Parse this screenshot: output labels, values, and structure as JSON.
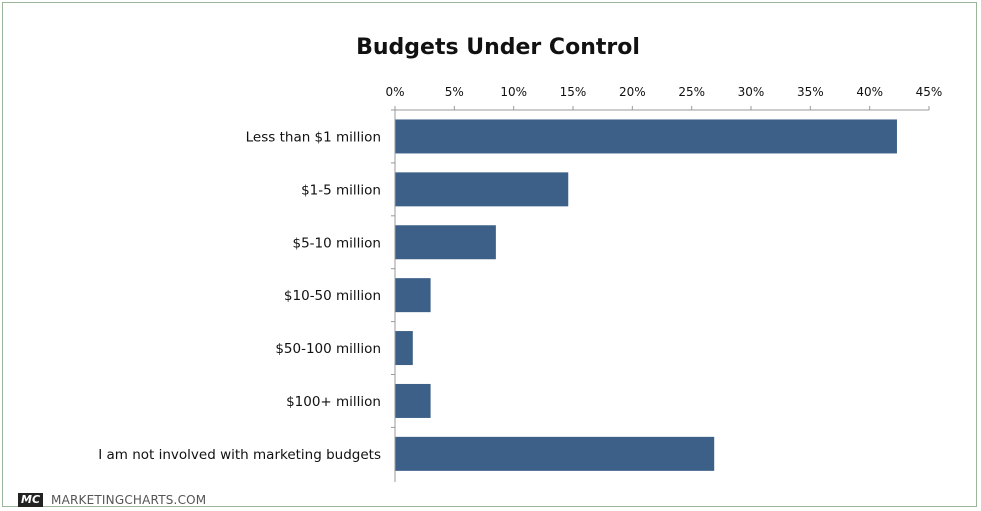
{
  "chart_data": {
    "type": "bar",
    "orientation": "horizontal",
    "title": "Budgets Under Control",
    "categories": [
      "Less than $1 million",
      "$1-5 million",
      "$5-10 million",
      "$10-50 million",
      "$50-100 million",
      "$100+ million",
      "I am not involved with marketing budgets"
    ],
    "values": [
      42.3,
      14.6,
      8.5,
      3.0,
      1.5,
      3.0,
      26.9
    ],
    "xlim": [
      0,
      45
    ],
    "xticks": [
      "0%",
      "5%",
      "10%",
      "15%",
      "20%",
      "25%",
      "30%",
      "35%",
      "40%",
      "45%"
    ],
    "xtick_values": [
      0,
      5,
      10,
      15,
      20,
      25,
      30,
      35,
      40,
      45
    ],
    "x_axis_position": "top",
    "xlabel": "",
    "ylabel": "",
    "grid": false,
    "legend": "none",
    "bar_color": "#3d6089"
  },
  "branding": {
    "logo": "MC",
    "name": "MARKETINGCHARTS.COM"
  }
}
